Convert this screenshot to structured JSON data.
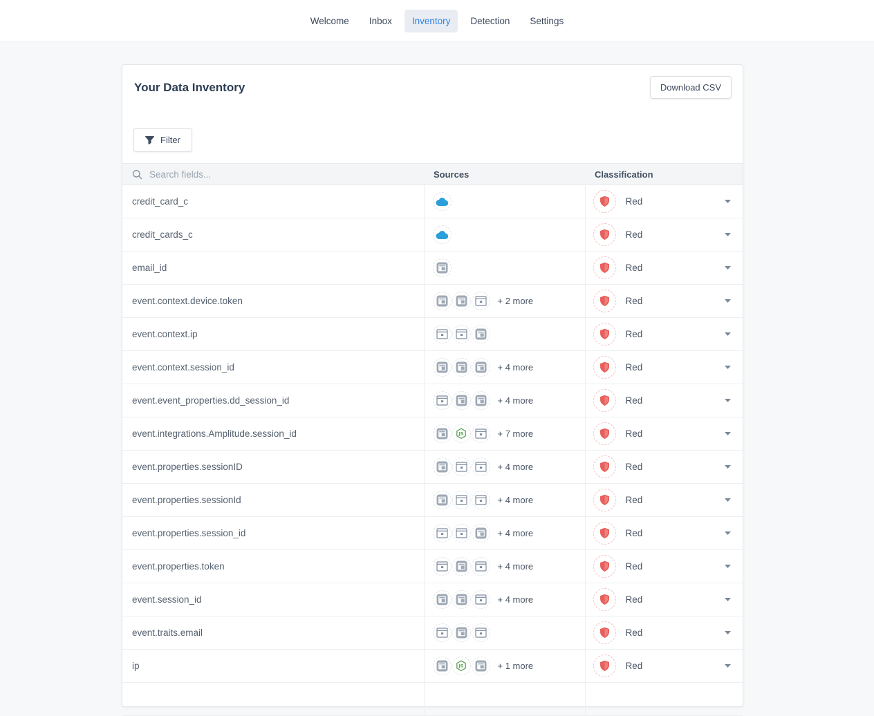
{
  "nav": {
    "items": [
      {
        "label": "Welcome",
        "active": false
      },
      {
        "label": "Inbox",
        "active": false
      },
      {
        "label": "Inventory",
        "active": true
      },
      {
        "label": "Detection",
        "active": false
      },
      {
        "label": "Settings",
        "active": false
      }
    ]
  },
  "card": {
    "title": "Your Data Inventory",
    "download_button": "Download CSV",
    "filter_button": "Filter"
  },
  "table": {
    "search_placeholder": "Search fields...",
    "columns": [
      "Sources",
      "Classification"
    ],
    "rows": [
      {
        "field": "credit_card_c",
        "sources": [
          "salesforce"
        ],
        "more": "",
        "classification": "Red"
      },
      {
        "field": "credit_cards_c",
        "sources": [
          "salesforce"
        ],
        "more": "",
        "classification": "Red"
      },
      {
        "field": "email_id",
        "sources": [
          "window-solid"
        ],
        "more": "",
        "classification": "Red"
      },
      {
        "field": "event.context.device.token",
        "sources": [
          "window-solid",
          "window-solid",
          "window-outline"
        ],
        "more": "+ 2 more",
        "classification": "Red"
      },
      {
        "field": "event.context.ip",
        "sources": [
          "window-outline",
          "window-outline",
          "window-solid"
        ],
        "more": "",
        "classification": "Red"
      },
      {
        "field": "event.context.session_id",
        "sources": [
          "window-solid",
          "window-solid",
          "window-solid"
        ],
        "more": "+ 4 more",
        "classification": "Red"
      },
      {
        "field": "event.event_properties.dd_session_id",
        "sources": [
          "window-outline",
          "window-solid",
          "window-solid"
        ],
        "more": "+ 4 more",
        "classification": "Red"
      },
      {
        "field": "event.integrations.Amplitude.session_id",
        "sources": [
          "window-solid",
          "nodejs",
          "window-outline"
        ],
        "more": "+ 7 more",
        "classification": "Red"
      },
      {
        "field": "event.properties.sessionID",
        "sources": [
          "window-solid",
          "window-outline",
          "window-outline"
        ],
        "more": "+ 4 more",
        "classification": "Red"
      },
      {
        "field": "event.properties.sessionId",
        "sources": [
          "window-solid",
          "window-outline",
          "window-outline"
        ],
        "more": "+ 4 more",
        "classification": "Red"
      },
      {
        "field": "event.properties.session_id",
        "sources": [
          "window-outline",
          "window-outline",
          "window-solid"
        ],
        "more": "+ 4 more",
        "classification": "Red"
      },
      {
        "field": "event.properties.token",
        "sources": [
          "window-outline",
          "window-solid",
          "window-outline"
        ],
        "more": "+ 4 more",
        "classification": "Red"
      },
      {
        "field": "event.session_id",
        "sources": [
          "window-solid",
          "window-solid",
          "window-outline"
        ],
        "more": "+ 4 more",
        "classification": "Red"
      },
      {
        "field": "event.traits.email",
        "sources": [
          "window-outline",
          "window-solid",
          "window-outline"
        ],
        "more": "",
        "classification": "Red"
      },
      {
        "field": "ip",
        "sources": [
          "window-solid",
          "nodejs",
          "window-solid"
        ],
        "more": "+ 1 more",
        "classification": "Red"
      }
    ]
  },
  "colors": {
    "nav_active": "#2f80e4",
    "classification_red": "#e85f5b",
    "salesforce_blue": "#2b9fd9",
    "nodejs_green": "#58a450"
  }
}
